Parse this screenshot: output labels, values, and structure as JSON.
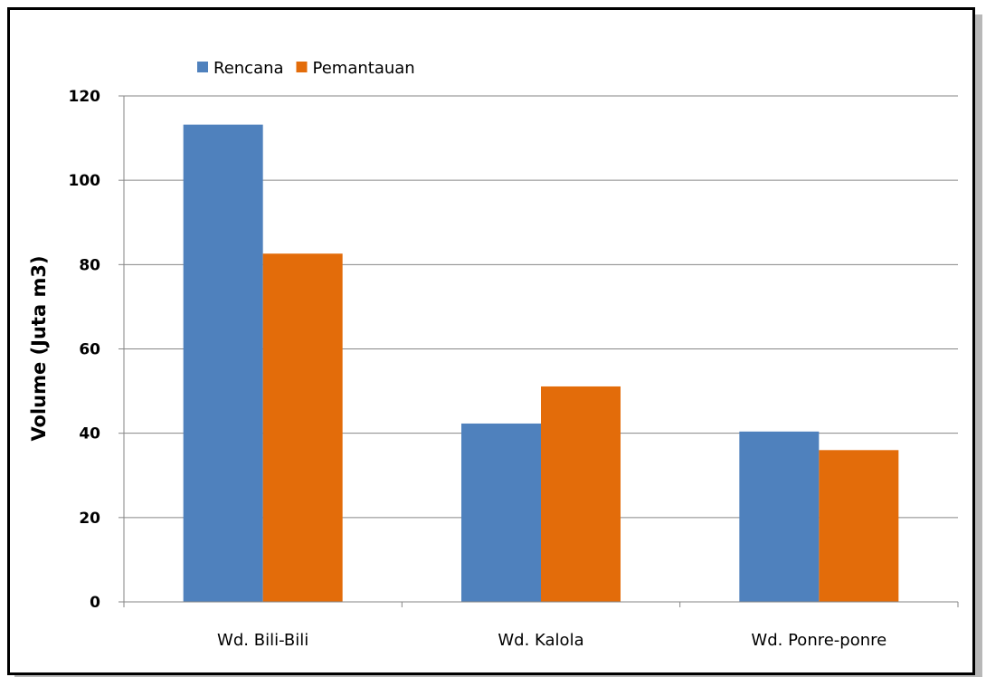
{
  "chart_data": {
    "type": "bar",
    "categories": [
      "Wd. Bili-Bili",
      "Wd. Kalola",
      "Wd. Ponre-ponre"
    ],
    "series": [
      {
        "name": "Rencana",
        "color": "#4f81bd",
        "values": [
          113.2,
          42.3,
          40.4
        ]
      },
      {
        "name": "Pemantauan",
        "color": "#e36c0a",
        "values": [
          82.6,
          51.1,
          36.0
        ]
      }
    ],
    "title": "",
    "xlabel": "",
    "ylabel": "Volume (Juta m3)",
    "ylim": [
      0,
      120
    ],
    "yticks": [
      0,
      20,
      40,
      60,
      80,
      100,
      120
    ],
    "grid": true,
    "legend_position": "top-left"
  }
}
